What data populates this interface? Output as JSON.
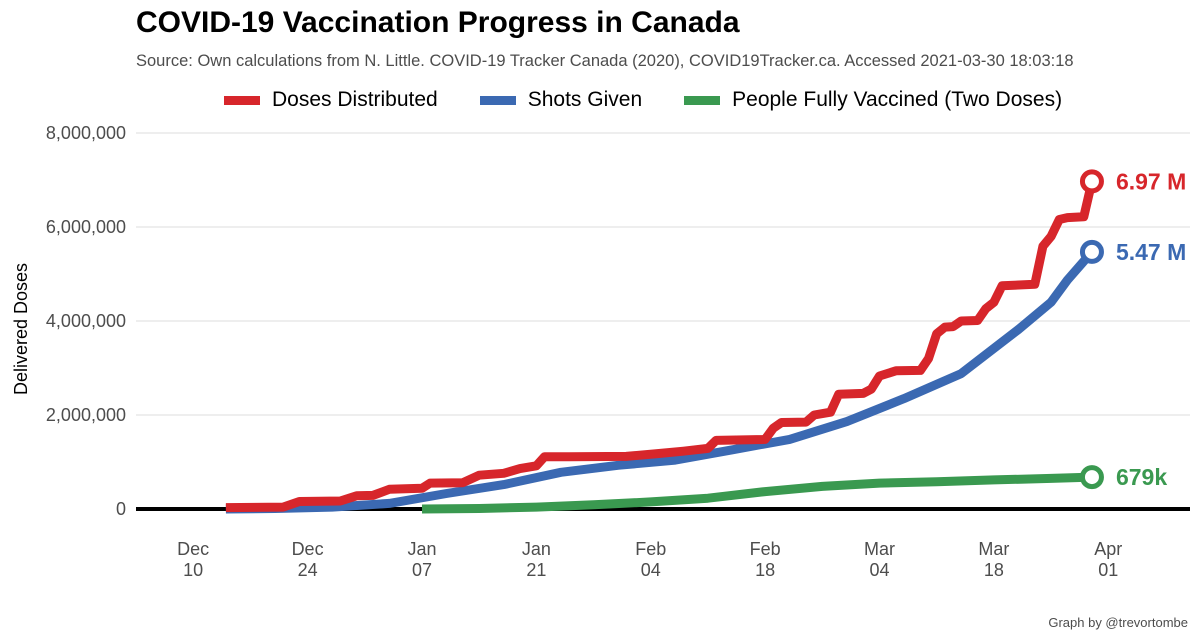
{
  "title": "COVID-19 Vaccination Progress in Canada",
  "subtitle": "Source: Own calculations from N. Little. COVID-19 Tracker Canada (2020), COVID19Tracker.ca. Accessed  2021-03-30 18:03:18",
  "credit": "Graph by @trevortombe",
  "chart_data": {
    "type": "line",
    "title": "COVID-19 Vaccination Progress in Canada",
    "ylabel": "Delivered Doses",
    "xlabel": "",
    "ylim": [
      0,
      8000000
    ],
    "xlim": [
      "2020-12-03",
      "2021-04-11"
    ],
    "y_ticks": [
      {
        "value": 0,
        "label": "0"
      },
      {
        "value": 2000000,
        "label": "2,000,000"
      },
      {
        "value": 4000000,
        "label": "4,000,000"
      },
      {
        "value": 6000000,
        "label": "6,000,000"
      },
      {
        "value": 8000000,
        "label": "8,000,000"
      }
    ],
    "x_ticks": [
      {
        "date": "2020-12-10",
        "line1": "Dec",
        "line2": "10"
      },
      {
        "date": "2020-12-24",
        "line1": "Dec",
        "line2": "24"
      },
      {
        "date": "2021-01-07",
        "line1": "Jan",
        "line2": "07"
      },
      {
        "date": "2021-01-21",
        "line1": "Jan",
        "line2": "21"
      },
      {
        "date": "2021-02-04",
        "line1": "Feb",
        "line2": "04"
      },
      {
        "date": "2021-02-18",
        "line1": "Feb",
        "line2": "18"
      },
      {
        "date": "2021-03-04",
        "line1": "Mar",
        "line2": "04"
      },
      {
        "date": "2021-03-18",
        "line1": "Mar",
        "line2": "18"
      },
      {
        "date": "2021-04-01",
        "line1": "Apr",
        "line2": "01"
      }
    ],
    "grid": true,
    "legend_position": "top",
    "series": [
      {
        "name": "Doses Distributed",
        "color": "#d7262b",
        "end_label": "6.97 M",
        "points": [
          [
            "2020-12-14",
            30000
          ],
          [
            "2020-12-21",
            40000
          ],
          [
            "2020-12-23",
            160000
          ],
          [
            "2020-12-28",
            170000
          ],
          [
            "2020-12-30",
            280000
          ],
          [
            "2021-01-01",
            290000
          ],
          [
            "2021-01-03",
            420000
          ],
          [
            "2021-01-07",
            440000
          ],
          [
            "2021-01-08",
            550000
          ],
          [
            "2021-01-12",
            560000
          ],
          [
            "2021-01-14",
            720000
          ],
          [
            "2021-01-17",
            760000
          ],
          [
            "2021-01-19",
            860000
          ],
          [
            "2021-01-21",
            920000
          ],
          [
            "2021-01-22",
            1110000
          ],
          [
            "2021-01-25",
            1110000
          ],
          [
            "2021-02-01",
            1120000
          ],
          [
            "2021-02-05",
            1180000
          ],
          [
            "2021-02-08",
            1230000
          ],
          [
            "2021-02-11",
            1290000
          ],
          [
            "2021-02-12",
            1460000
          ],
          [
            "2021-02-18",
            1480000
          ],
          [
            "2021-02-19",
            1720000
          ],
          [
            "2021-02-20",
            1840000
          ],
          [
            "2021-02-23",
            1850000
          ],
          [
            "2021-02-24",
            2000000
          ],
          [
            "2021-02-26",
            2060000
          ],
          [
            "2021-02-27",
            2440000
          ],
          [
            "2021-03-02",
            2460000
          ],
          [
            "2021-03-03",
            2550000
          ],
          [
            "2021-03-04",
            2830000
          ],
          [
            "2021-03-06",
            2940000
          ],
          [
            "2021-03-09",
            2950000
          ],
          [
            "2021-03-10",
            3200000
          ],
          [
            "2021-03-11",
            3730000
          ],
          [
            "2021-03-12",
            3870000
          ],
          [
            "2021-03-13",
            3880000
          ],
          [
            "2021-03-14",
            4000000
          ],
          [
            "2021-03-16",
            4010000
          ],
          [
            "2021-03-17",
            4260000
          ],
          [
            "2021-03-18",
            4400000
          ],
          [
            "2021-03-19",
            4750000
          ],
          [
            "2021-03-23",
            4780000
          ],
          [
            "2021-03-24",
            5590000
          ],
          [
            "2021-03-25",
            5800000
          ],
          [
            "2021-03-26",
            6160000
          ],
          [
            "2021-03-27",
            6200000
          ],
          [
            "2021-03-29",
            6220000
          ],
          [
            "2021-03-30",
            6970000
          ]
        ]
      },
      {
        "name": "Shots Given",
        "color": "#3b69b2",
        "end_label": "5.47 M",
        "points": [
          [
            "2020-12-14",
            0
          ],
          [
            "2020-12-20",
            10000
          ],
          [
            "2020-12-27",
            40000
          ],
          [
            "2021-01-03",
            120000
          ],
          [
            "2021-01-10",
            330000
          ],
          [
            "2021-01-17",
            520000
          ],
          [
            "2021-01-24",
            780000
          ],
          [
            "2021-01-31",
            930000
          ],
          [
            "2021-02-07",
            1040000
          ],
          [
            "2021-02-14",
            1260000
          ],
          [
            "2021-02-21",
            1480000
          ],
          [
            "2021-02-28",
            1860000
          ],
          [
            "2021-03-07",
            2350000
          ],
          [
            "2021-03-14",
            2880000
          ],
          [
            "2021-03-21",
            3820000
          ],
          [
            "2021-03-25",
            4400000
          ],
          [
            "2021-03-27",
            4870000
          ],
          [
            "2021-03-30",
            5470000
          ]
        ]
      },
      {
        "name": "People Fully Vaccined (Two Doses)",
        "color": "#3a9950",
        "end_label": "679k",
        "points": [
          [
            "2021-01-07",
            0
          ],
          [
            "2021-01-14",
            10000
          ],
          [
            "2021-01-21",
            40000
          ],
          [
            "2021-01-28",
            90000
          ],
          [
            "2021-02-04",
            150000
          ],
          [
            "2021-02-11",
            230000
          ],
          [
            "2021-02-18",
            370000
          ],
          [
            "2021-02-25",
            480000
          ],
          [
            "2021-03-04",
            550000
          ],
          [
            "2021-03-11",
            580000
          ],
          [
            "2021-03-18",
            620000
          ],
          [
            "2021-03-25",
            650000
          ],
          [
            "2021-03-30",
            679000
          ]
        ]
      }
    ]
  }
}
